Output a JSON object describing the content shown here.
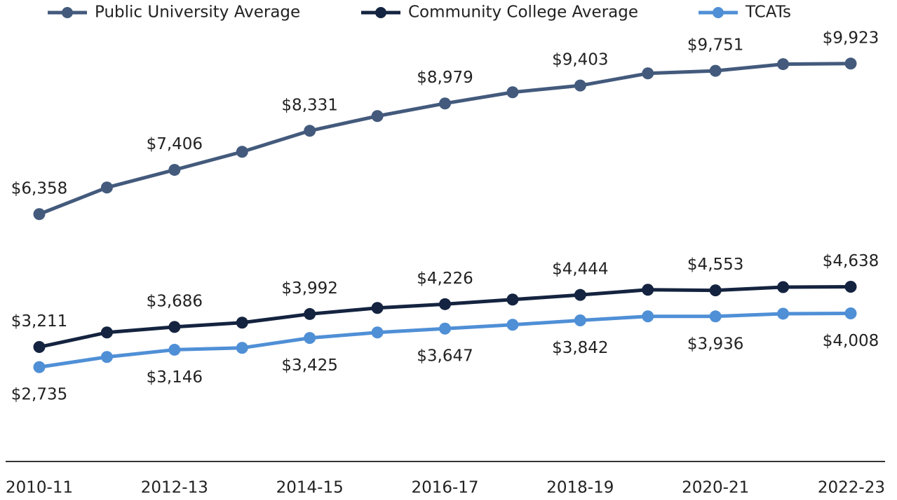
{
  "chart_data": {
    "type": "line",
    "categories": [
      "2010-11",
      null,
      "2012-13",
      null,
      "2014-15",
      null,
      "2016-17",
      null,
      "2018-19",
      null,
      "2020-21",
      null,
      "2022-23"
    ],
    "series": [
      {
        "name": "Public University Average",
        "color": "#435a7c",
        "values": [
          6358,
          6988,
          7406,
          7834,
          8331,
          8680,
          8979,
          9244,
          9403,
          9691,
          9751,
          9910,
          9923
        ],
        "value_labels": [
          "$6,358",
          null,
          "$7,406",
          null,
          "$8,331",
          null,
          "$8,979",
          null,
          "$9,403",
          null,
          "$9,751",
          null,
          "$9,923"
        ]
      },
      {
        "name": "Community College Average",
        "color": "#14233f",
        "values": [
          3211,
          3555,
          3686,
          3788,
          3992,
          4136,
          4226,
          4335,
          4444,
          4567,
          4553,
          4630,
          4638
        ],
        "value_labels": [
          "$3,211",
          null,
          "$3,686",
          null,
          "$3,992",
          null,
          "$4,226",
          null,
          "$4,444",
          null,
          "$4,553",
          null,
          "$4,638"
        ]
      },
      {
        "name": "TCATs",
        "color": "#4f8fd6",
        "values": [
          2735,
          2975,
          3146,
          3191,
          3425,
          3555,
          3647,
          3738,
          3842,
          3937,
          3936,
          4000,
          4008
        ],
        "value_labels": [
          "$2,735",
          null,
          "$3,146",
          null,
          "$3,425",
          null,
          "$3,647",
          null,
          "$3,842",
          null,
          "$3,936",
          null,
          "$4,008"
        ]
      }
    ],
    "ylim": [
      500,
      10500
    ]
  }
}
